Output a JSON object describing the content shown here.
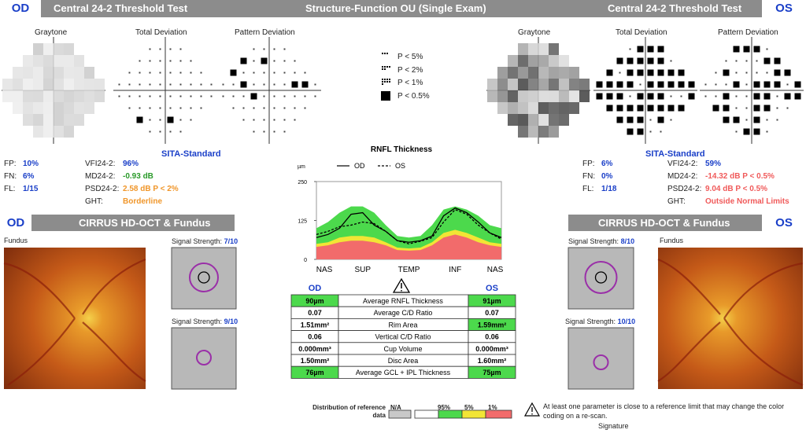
{
  "header": {
    "left_eye": "OD",
    "left_title": "Central 24-2 Threshold Test",
    "center_title": "Structure-Function OU (Single Exam)",
    "right_title": "Central 24-2 Threshold Test",
    "right_eye": "OS"
  },
  "visual_field": {
    "plot_labels": [
      "Graytone",
      "Total Deviation",
      "Pattern Deviation"
    ],
    "od": {
      "strategy": "SITA-Standard",
      "reliability": [
        [
          "FP:",
          "10%"
        ],
        [
          "FN:",
          "6%"
        ],
        [
          "FL:",
          "1/15"
        ]
      ],
      "global": [
        [
          "VFI24-2:",
          "96%"
        ],
        [
          "MD24-2:",
          "-0.93 dB"
        ],
        [
          "PSD24-2:",
          "2.58 dB P < 2%"
        ],
        [
          "GHT:",
          "Borderline"
        ]
      ],
      "global_colors": [
        "#1a3fc8",
        "#2a9a2a",
        "#f0962a",
        "#f0962a"
      ]
    },
    "os": {
      "strategy": "SITA-Standard",
      "reliability": [
        [
          "FP:",
          "6%"
        ],
        [
          "FN:",
          "0%"
        ],
        [
          "FL:",
          "1/18"
        ]
      ],
      "global": [
        [
          "VFI24-2:",
          "59%"
        ],
        [
          "MD24-2:",
          "-14.32 dB P < 0.5%"
        ],
        [
          "PSD24-2:",
          "9.04 dB P < 0.5%"
        ],
        [
          "GHT:",
          "Outside Normal Limits"
        ]
      ],
      "global_colors": [
        "#1a3fc8",
        "#f05a5a",
        "#f05a5a",
        "#f05a5a"
      ]
    }
  },
  "probability_legend": [
    "P < 5%",
    "P < 2%",
    "P < 1%",
    "P < 0.5%"
  ],
  "chart_data": {
    "type": "line",
    "title": "RNFL Thickness",
    "unit": "µm",
    "categories": [
      "NAS",
      null,
      null,
      null,
      "SUP",
      null,
      null,
      null,
      "TEMP",
      null,
      null,
      null,
      "INF",
      null,
      null,
      null,
      "NAS"
    ],
    "ylim": [
      0,
      250
    ],
    "yticks": [
      0,
      125,
      250
    ],
    "bands": [
      {
        "color": "#4cd94c",
        "values": [
          100,
          120,
          150,
          170,
          170,
          150,
          110,
          75,
          70,
          75,
          110,
          160,
          170,
          160,
          140,
          110,
          100
        ]
      },
      {
        "color": "#f2e535",
        "values": [
          50,
          55,
          70,
          75,
          75,
          70,
          55,
          38,
          35,
          38,
          55,
          85,
          95,
          85,
          70,
          55,
          50
        ]
      },
      {
        "color": "#f26b6b",
        "values": [
          40,
          45,
          55,
          60,
          60,
          55,
          45,
          30,
          28,
          30,
          45,
          70,
          80,
          70,
          55,
          45,
          40
        ]
      }
    ],
    "series": [
      {
        "name": "OD",
        "color": "#000000",
        "values": [
          70,
          80,
          100,
          145,
          150,
          110,
          90,
          60,
          55,
          60,
          75,
          140,
          165,
          150,
          120,
          85,
          70
        ]
      },
      {
        "name": "OS",
        "color": "#000000",
        "dash": true,
        "values": [
          80,
          90,
          105,
          110,
          120,
          115,
          90,
          60,
          50,
          58,
          70,
          120,
          160,
          145,
          110,
          85,
          65
        ]
      }
    ]
  },
  "table": {
    "od": "OD",
    "os": "OS",
    "rows": [
      {
        "od": "90µm",
        "label": "Average RNFL Thickness",
        "os": "91µm",
        "od_color": "#4cd94c",
        "os_color": "#4cd94c"
      },
      {
        "od": "0.07",
        "label": "Average C/D Ratio",
        "os": "0.07",
        "od_color": "#ffffff",
        "os_color": "#ffffff"
      },
      {
        "od": "1.51mm²",
        "label": "Rim Area",
        "os": "1.59mm²",
        "od_color": "#ffffff",
        "os_color": "#4cd94c"
      },
      {
        "od": "0.06",
        "label": "Vertical C/D Ratio",
        "os": "0.06",
        "od_color": "#ffffff",
        "os_color": "#ffffff"
      },
      {
        "od": "0.000mm³",
        "label": "Cup Volume",
        "os": "0.000mm³",
        "od_color": "#ffffff",
        "os_color": "#ffffff"
      },
      {
        "od": "1.50mm²",
        "label": "Disc Area",
        "os": "1.60mm²",
        "od_color": "#ffffff",
        "os_color": "#ffffff"
      },
      {
        "od": "76µm",
        "label": "Average GCL + IPL Thickness",
        "os": "75µm",
        "od_color": "#4cd94c",
        "os_color": "#4cd94c"
      }
    ]
  },
  "distribution": {
    "label": "Distribution of reference data",
    "na": "N/A",
    "p95": "95%",
    "p5": "5%",
    "p1": "1%"
  },
  "note": "At least one parameter is close to a reference limit that may change the color coding on a re-scan.",
  "signature": "Signature",
  "oct": {
    "od": {
      "eye": "OD",
      "title": "CIRRUS HD-OCT & Fundus",
      "fundus": "Fundus",
      "signal_label": "Signal Strength:",
      "signals": [
        "7/10",
        "9/10"
      ]
    },
    "os": {
      "eye": "OS",
      "title": "CIRRUS HD-OCT & Fundus",
      "fundus": "Fundus",
      "signal_label": "Signal Strength:",
      "signals": [
        "8/10",
        "10/10"
      ]
    }
  }
}
